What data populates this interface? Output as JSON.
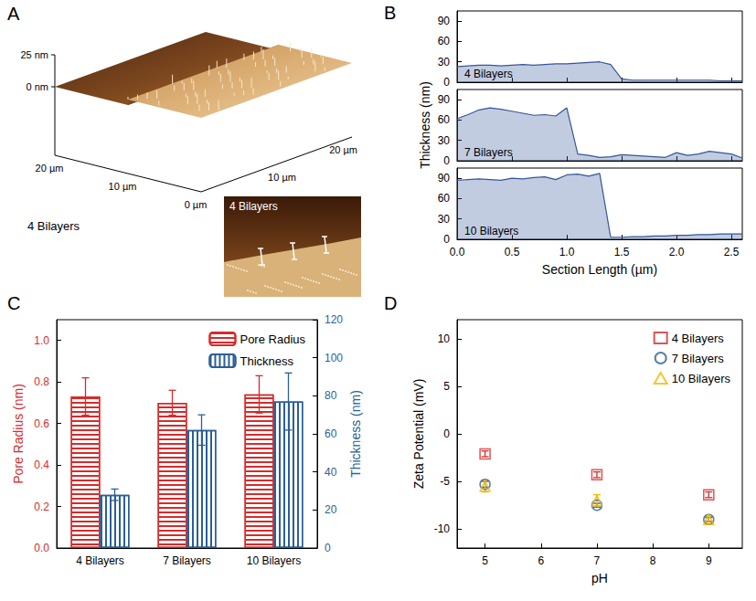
{
  "image_panel": {
    "panel": "A",
    "type": "image",
    "z_axis_labels": [
      "25 nm",
      "0 nm"
    ],
    "left_axis_labels": [
      "20 µm",
      "10 µm",
      "0 µm"
    ],
    "right_axis_labels": [
      "10 µm",
      "20 µm"
    ],
    "caption": "4 Bilayers",
    "inset_label": "4 Bilayers"
  },
  "chart_data": [
    {
      "panel": "B",
      "type": "area",
      "annotation": "4 Bilayers",
      "color": "#35569a",
      "x": [
        0,
        0.1,
        0.2,
        0.3,
        0.4,
        0.5,
        0.6,
        0.7,
        0.8,
        0.9,
        1,
        1.1,
        1.2,
        1.3,
        1.4,
        1.5,
        1.6,
        1.7,
        1.8,
        1.9,
        2,
        2.1,
        2.2,
        2.3,
        2.4,
        2.5,
        2.6
      ],
      "values": [
        23,
        24,
        25,
        25,
        24,
        25,
        26,
        25,
        26,
        27,
        27,
        28,
        29,
        30,
        26,
        5,
        3,
        3,
        3,
        3,
        3,
        3,
        3,
        3,
        2,
        2,
        2
      ],
      "xlim": [
        0,
        2.6
      ],
      "xticks": [
        {
          "value": 0,
          "label": "0.0"
        },
        0.5,
        {
          "value": 1,
          "label": "1.0"
        },
        1.5,
        {
          "value": 2,
          "label": "2.0"
        },
        2.5
      ],
      "ylim": [
        0,
        105
      ],
      "yticks": [
        0,
        30,
        60,
        90
      ],
      "tick_labels": "y",
      "grid": false
    },
    {
      "type": "area",
      "annotation": "7 Bilayers",
      "ylabel": "Thickness (nm)",
      "color": "#35569a",
      "x": [
        0,
        0.1,
        0.2,
        0.3,
        0.4,
        0.5,
        0.6,
        0.7,
        0.8,
        0.9,
        1,
        1.1,
        1.2,
        1.3,
        1.4,
        1.5,
        1.6,
        1.7,
        1.8,
        1.9,
        2,
        2.1,
        2.2,
        2.3,
        2.4,
        2.5,
        2.6
      ],
      "values": [
        62,
        68,
        75,
        78,
        76,
        73,
        70,
        67,
        68,
        66,
        78,
        10,
        8,
        5,
        6,
        9,
        8,
        7,
        6,
        5,
        12,
        8,
        10,
        14,
        12,
        10,
        4
      ],
      "xlim": [
        0,
        2.6
      ],
      "xticks": [
        {
          "value": 0,
          "label": "0.0"
        },
        0.5,
        {
          "value": 1,
          "label": "1.0"
        },
        1.5,
        {
          "value": 2,
          "label": "2.0"
        },
        2.5
      ],
      "ylim": [
        0,
        105
      ],
      "yticks": [
        0,
        30,
        60,
        90
      ],
      "tick_labels": "y",
      "grid": false
    },
    {
      "type": "area",
      "annotation": "10 Bilayers",
      "xlabel": "Section Length (µm)",
      "color": "#35569a",
      "x": [
        0,
        0.1,
        0.2,
        0.3,
        0.4,
        0.5,
        0.6,
        0.7,
        0.8,
        0.9,
        1,
        1.1,
        1.2,
        1.3,
        1.4,
        1.5,
        1.6,
        1.7,
        1.8,
        1.9,
        2,
        2.1,
        2.2,
        2.3,
        2.4,
        2.5,
        2.6
      ],
      "values": [
        87,
        88,
        89,
        88,
        87,
        90,
        89,
        91,
        92,
        88,
        95,
        96,
        93,
        97,
        3,
        3,
        4,
        4,
        5,
        5,
        6,
        6,
        7,
        7,
        8,
        8,
        8
      ],
      "xlim": [
        0,
        2.6
      ],
      "xticks": [
        {
          "value": 0,
          "label": "0.0"
        },
        0.5,
        {
          "value": 1,
          "label": "1.0"
        },
        1.5,
        {
          "value": 2,
          "label": "2.0"
        },
        2.5
      ],
      "ylim": [
        0,
        105
      ],
      "yticks": [
        0,
        30,
        60,
        90
      ],
      "grid": false
    },
    {
      "panel": "C",
      "type": "bar",
      "categories": [
        "4 Bilayers",
        "7 Bilayers",
        "10 Bilayers"
      ],
      "ylabel": "Pore Radius (nm)",
      "y2label": "Thickness (nm)",
      "ylim": [
        0,
        1.1
      ],
      "yticks": [
        {
          "value": 0,
          "label": "0.0"
        },
        0.2,
        0.4,
        0.6,
        0.8,
        {
          "value": 1,
          "label": "1.0"
        }
      ],
      "y2lim": [
        0,
        120
      ],
      "y2ticks": [
        0,
        20,
        40,
        60,
        80,
        100,
        120
      ],
      "legend": "upper right",
      "grid": false,
      "series": [
        {
          "name": "Pore Radius",
          "color": "#d62b2b",
          "values": [
            0.73,
            0.7,
            0.74
          ],
          "errors": [
            0.09,
            0.06,
            0.09
          ]
        },
        {
          "name": "Thickness",
          "color": "#2b5f97",
          "axis": "y2",
          "values": [
            28,
            62,
            77
          ],
          "errors": [
            3,
            8,
            15
          ]
        }
      ]
    },
    {
      "panel": "D",
      "type": "scatter",
      "xlabel": "pH",
      "ylabel": "Zeta Potential (mV)",
      "xlim": [
        4.5,
        9.6
      ],
      "xticks": [
        5,
        6,
        7,
        8,
        9
      ],
      "ylim": [
        -12,
        12
      ],
      "yticks": [
        -10,
        -5,
        0,
        5,
        10
      ],
      "legend": "upper right",
      "grid": false,
      "series": [
        {
          "name": "4 Bilayers",
          "color": "#d62b2b",
          "marker": "square",
          "x": [
            5,
            7,
            9
          ],
          "values": [
            -2.1,
            -4.3,
            -6.4
          ],
          "errors": [
            0.3,
            0.3,
            0.3
          ]
        },
        {
          "name": "7 Bilayers",
          "color": "#2b5f97",
          "marker": "circle",
          "x": [
            5,
            7,
            9
          ],
          "values": [
            -5.3,
            -7.5,
            -9.0
          ],
          "errors": [
            0.3,
            0.2,
            0.2
          ]
        },
        {
          "name": "10 Bilayers",
          "color": "#f2b705",
          "marker": "triangle",
          "x": [
            5,
            7,
            9
          ],
          "values": [
            -5.5,
            -7.0,
            -9.0
          ],
          "errors": [
            0.6,
            0.6,
            0.3
          ]
        }
      ]
    }
  ]
}
